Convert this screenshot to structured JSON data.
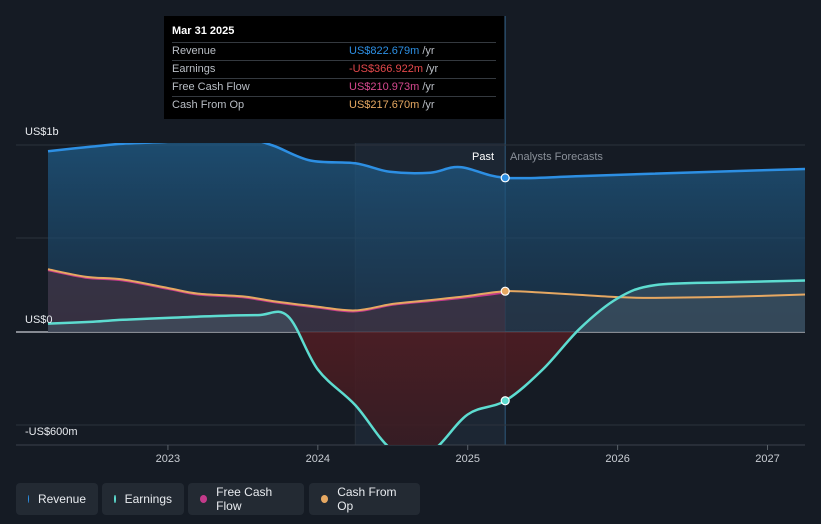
{
  "chart_data": {
    "type": "area",
    "title": "",
    "y_axis": {
      "top_label": "US$1b",
      "zero_label": "US$0",
      "bottom_label": "-US$600m",
      "ylim": [
        -700,
        1200
      ]
    },
    "x_axis": {
      "ticks": [
        "2023",
        "2024",
        "2025",
        "2026",
        "2027"
      ],
      "xlim": [
        2022.2,
        2027.25
      ]
    },
    "past_label": "Past",
    "forecast_label": "Analysts Forecasts",
    "series": [
      {
        "name": "Revenue",
        "color": "#2d8fe3",
        "unit": "US$m/yr",
        "x": [
          2022.2,
          2022.5,
          2022.7,
          2023.0,
          2023.2,
          2023.5,
          2023.7,
          2023.95,
          2024.25,
          2024.48,
          2024.75,
          2024.95,
          2025.25,
          2025.75,
          2026.25,
          2026.75,
          2027.25
        ],
        "values": [
          965,
          990,
          1005,
          1015,
          1030,
          1035,
          995,
          915,
          900,
          855,
          850,
          880,
          822.7,
          832,
          845,
          858,
          870
        ]
      },
      {
        "name": "Earnings",
        "color": "#5ddcd0",
        "unit": "US$m/yr",
        "x": [
          2022.2,
          2022.5,
          2022.7,
          2023.0,
          2023.3,
          2023.6,
          2023.8,
          2024.0,
          2024.25,
          2024.5,
          2024.75,
          2025.0,
          2025.25,
          2025.5,
          2025.75,
          2026.0,
          2026.25,
          2026.75,
          2027.25
        ],
        "values": [
          45,
          55,
          65,
          75,
          85,
          90,
          85,
          -200,
          -390,
          -630,
          -640,
          -440,
          -366.9,
          -200,
          20,
          180,
          250,
          265,
          275
        ]
      },
      {
        "name": "Free Cash Flow",
        "color": "#c33a8a",
        "unit": "US$m/yr",
        "x": [
          2022.2,
          2022.45,
          2022.7,
          2023.0,
          2023.2,
          2023.5,
          2023.7,
          2024.0,
          2024.25,
          2024.5,
          2024.75,
          2025.0,
          2025.25
        ],
        "values": [
          330,
          290,
          275,
          230,
          200,
          185,
          160,
          130,
          110,
          145,
          165,
          185,
          211
        ]
      },
      {
        "name": "Cash From Op",
        "color": "#e6a862",
        "unit": "US$m/yr",
        "x": [
          2022.2,
          2022.45,
          2022.7,
          2023.0,
          2023.2,
          2023.5,
          2023.7,
          2024.0,
          2024.25,
          2024.5,
          2024.75,
          2025.0,
          2025.25,
          2025.5,
          2025.75,
          2026.0,
          2026.25,
          2026.75,
          2027.25
        ],
        "values": [
          335,
          295,
          280,
          235,
          205,
          190,
          165,
          135,
          115,
          150,
          170,
          192,
          217.7,
          210,
          198,
          186,
          182,
          188,
          200
        ]
      }
    ]
  },
  "tooltip": {
    "date": "Mar 31 2025",
    "rows": [
      {
        "label": "Revenue",
        "value": "US$822.679m",
        "unit": "/yr",
        "color": "#2d8fe3"
      },
      {
        "label": "Earnings",
        "value": "-US$366.922m",
        "unit": "/yr",
        "color": "#e3484b"
      },
      {
        "label": "Free Cash Flow",
        "value": "US$210.973m",
        "unit": "/yr",
        "color": "#d6498f"
      },
      {
        "label": "Cash From Op",
        "value": "US$217.670m",
        "unit": "/yr",
        "color": "#e6a862"
      }
    ]
  },
  "legend": [
    {
      "label": "Revenue",
      "color": "#2d8fe3"
    },
    {
      "label": "Earnings",
      "color": "#5ddcd0"
    },
    {
      "label": "Free Cash Flow",
      "color": "#c33a8a"
    },
    {
      "label": "Cash From Op",
      "color": "#e6a862"
    }
  ]
}
